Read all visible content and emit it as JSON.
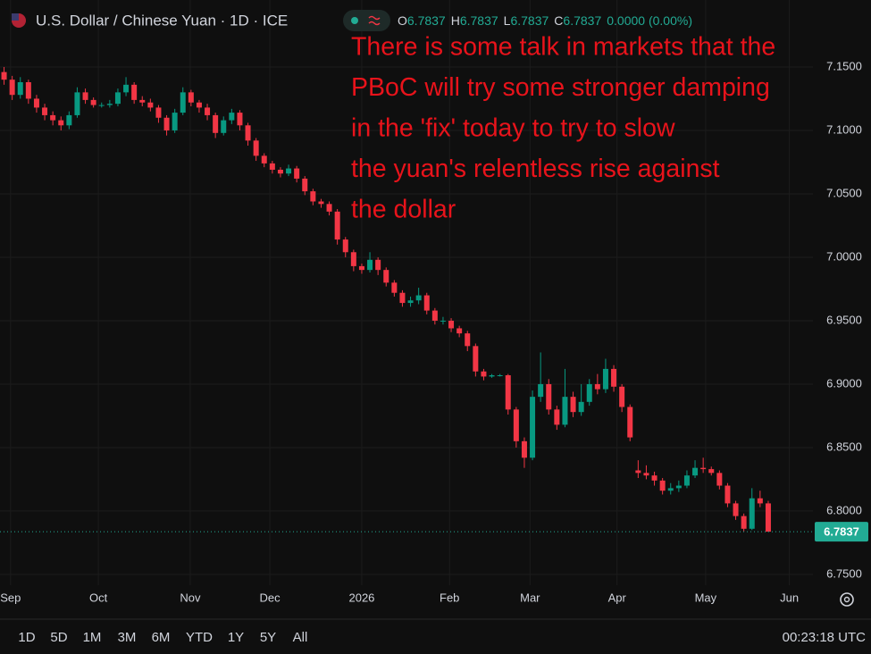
{
  "chart_data": {
    "type": "candlestick",
    "title": "U.S. Dollar / Chinese Yuan · 1D · ICE",
    "ohlc_legend": [
      {
        "label": "O",
        "value": "6.7837"
      },
      {
        "label": "H",
        "value": "6.7837"
      },
      {
        "label": "L",
        "value": "6.7837"
      },
      {
        "label": "C",
        "value": "6.7837"
      }
    ],
    "change": "0.0000 (0.00%)",
    "annotation": [
      "There is some talk in markets that the",
      "PBoC will try some stronger damping",
      "in the 'fix' today to try to slow",
      "the yuan's relentless rise against",
      "the dollar"
    ],
    "up_color": "#089981",
    "down_color": "#f23645",
    "annotation_color": "#e8131b",
    "grid": true,
    "xlim": [
      -0.5,
      99.5
    ],
    "ylim": [
      6.7415,
      7.2028
    ],
    "xticks": [
      {
        "value": 0.8,
        "label": "Sep"
      },
      {
        "value": 11.6,
        "label": "Oct"
      },
      {
        "value": 22.9,
        "label": "Nov"
      },
      {
        "value": 32.7,
        "label": "Dec"
      },
      {
        "value": 44,
        "label": "2026"
      },
      {
        "value": 54.8,
        "label": "Feb"
      },
      {
        "value": 64.7,
        "label": "Mar"
      },
      {
        "value": 75.4,
        "label": "Apr"
      },
      {
        "value": 86.3,
        "label": "May"
      },
      {
        "value": 96.6,
        "label": "Jun"
      }
    ],
    "yticks": [
      {
        "value": 6.75,
        "label": "6.7500"
      },
      {
        "value": 6.8,
        "label": "6.8000"
      },
      {
        "value": 6.85,
        "label": "6.8500"
      },
      {
        "value": 6.9,
        "label": "6.9000"
      },
      {
        "value": 6.95,
        "label": "6.9500"
      },
      {
        "value": 7.0,
        "label": "7.0000"
      },
      {
        "value": 7.05,
        "label": "7.0500"
      },
      {
        "value": 7.1,
        "label": "7.1000"
      },
      {
        "value": 7.15,
        "label": "7.1500"
      }
    ],
    "open": [
      7.146,
      7.14,
      7.128,
      7.138,
      7.125,
      7.118,
      7.112,
      7.108,
      7.104,
      7.112,
      7.13,
      7.124,
      7.12,
      7.12,
      7.121,
      7.13,
      7.136,
      7.124,
      7.122,
      7.118,
      7.11,
      7.1,
      7.114,
      7.13,
      7.122,
      7.118,
      7.112,
      7.098,
      7.108,
      7.114,
      7.104,
      7.092,
      7.08,
      7.074,
      7.069,
      7.066,
      7.07,
      7.062,
      7.052,
      7.044,
      7.042,
      7.036,
      7.014,
      7.004,
      6.993,
      6.99,
      6.998,
      6.99,
      6.98,
      6.972,
      6.964,
      6.966,
      6.97,
      6.958,
      6.95,
      6.95,
      6.944,
      6.94,
      6.93,
      6.91,
      6.906,
      6.907,
      6.907,
      6.88,
      6.855,
      6.842,
      6.89,
      6.9,
      6.88,
      6.868,
      6.89,
      6.878,
      6.886,
      6.9,
      6.896,
      6.912,
      6.898,
      6.882,
      6.832,
      6.83,
      6.828,
      6.824,
      6.816,
      6.818,
      6.82,
      6.828,
      6.834,
      6.833,
      6.83,
      6.82,
      6.806,
      6.796,
      6.786,
      6.81,
      6.806
    ],
    "high": [
      7.15,
      7.143,
      7.142,
      7.14,
      7.128,
      7.121,
      7.115,
      7.111,
      7.115,
      7.134,
      7.133,
      7.126,
      7.122,
      7.124,
      7.133,
      7.142,
      7.138,
      7.127,
      7.125,
      7.12,
      7.112,
      7.117,
      7.134,
      7.132,
      7.124,
      7.121,
      7.114,
      7.111,
      7.117,
      7.116,
      7.106,
      7.094,
      7.082,
      7.076,
      7.071,
      7.073,
      7.072,
      7.064,
      7.054,
      7.046,
      7.044,
      7.038,
      7.016,
      7.006,
      6.995,
      7.004,
      7.0,
      6.992,
      6.982,
      6.974,
      6.969,
      6.976,
      6.972,
      6.96,
      6.953,
      6.952,
      6.946,
      6.942,
      6.932,
      6.912,
      6.908,
      6.908,
      6.908,
      6.882,
      6.858,
      6.895,
      6.925,
      6.904,
      6.883,
      6.912,
      6.894,
      6.9,
      6.904,
      6.908,
      6.92,
      6.915,
      6.9,
      6.884,
      6.84,
      6.836,
      6.831,
      6.826,
      6.822,
      6.824,
      6.832,
      6.84,
      6.842,
      6.835,
      6.832,
      6.822,
      6.808,
      6.798,
      6.818,
      6.816,
      6.808
    ],
    "low": [
      7.136,
      7.124,
      7.125,
      7.121,
      7.114,
      7.108,
      7.104,
      7.1,
      7.101,
      7.11,
      7.121,
      7.118,
      7.118,
      7.118,
      7.119,
      7.127,
      7.121,
      7.119,
      7.115,
      7.106,
      7.096,
      7.098,
      7.112,
      7.119,
      7.114,
      7.108,
      7.094,
      7.096,
      7.105,
      7.1,
      7.088,
      7.076,
      7.071,
      7.066,
      7.063,
      7.064,
      7.059,
      7.049,
      7.041,
      7.039,
      7.033,
      7.01,
      7.0,
      6.989,
      6.987,
      6.988,
      6.986,
      6.977,
      6.969,
      6.961,
      6.961,
      6.963,
      6.955,
      6.947,
      6.947,
      6.941,
      6.937,
      6.926,
      6.906,
      6.903,
      6.905,
      6.906,
      6.876,
      6.85,
      6.834,
      6.84,
      6.886,
      6.876,
      6.864,
      6.866,
      6.874,
      6.875,
      6.883,
      6.892,
      6.893,
      6.894,
      6.878,
      6.855,
      6.826,
      6.825,
      6.82,
      6.813,
      6.813,
      6.815,
      6.818,
      6.826,
      6.83,
      6.828,
      6.817,
      6.803,
      6.793,
      6.784,
      6.785,
      6.803,
      6.7837
    ],
    "close": [
      7.14,
      7.128,
      7.138,
      7.125,
      7.118,
      7.112,
      7.108,
      7.104,
      7.112,
      7.13,
      7.124,
      7.12,
      7.12,
      7.121,
      7.13,
      7.136,
      7.124,
      7.122,
      7.118,
      7.11,
      7.1,
      7.114,
      7.13,
      7.122,
      7.118,
      7.112,
      7.098,
      7.108,
      7.114,
      7.104,
      7.092,
      7.08,
      7.074,
      7.069,
      7.066,
      7.07,
      7.062,
      7.052,
      7.044,
      7.042,
      7.036,
      7.014,
      7.004,
      6.993,
      6.99,
      6.998,
      6.99,
      6.98,
      6.972,
      6.964,
      6.966,
      6.97,
      6.958,
      6.95,
      6.95,
      6.944,
      6.94,
      6.93,
      6.91,
      6.906,
      6.907,
      6.907,
      6.88,
      6.855,
      6.842,
      6.89,
      6.9,
      6.88,
      6.868,
      6.89,
      6.878,
      6.886,
      6.9,
      6.896,
      6.912,
      6.898,
      6.882,
      6.858,
      6.83,
      6.828,
      6.824,
      6.816,
      6.818,
      6.82,
      6.828,
      6.834,
      6.833,
      6.83,
      6.82,
      6.806,
      6.796,
      6.786,
      6.81,
      6.806,
      6.7837
    ]
  },
  "toolbar": {
    "timeframes": [
      "1D",
      "5D",
      "1M",
      "3M",
      "6M",
      "YTD",
      "1Y",
      "5Y",
      "All"
    ],
    "clock": "00:23:18 UTC"
  }
}
